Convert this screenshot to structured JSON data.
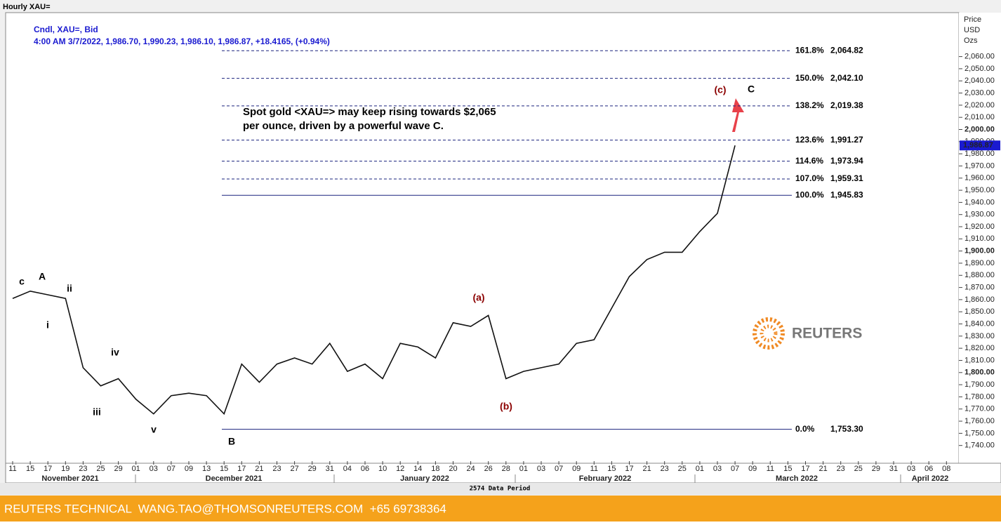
{
  "chart_data": {
    "type": "line",
    "window_title": "Hourly XAU=",
    "subtitle": "Cndl, XAU=, Bid",
    "quote_line": "4:00 AM 3/7/2022, 1,986.70, 1,990.23, 1,986.10, 1,986.87, +18.4165, (+0.94%)",
    "y_axis_label": [
      "Price",
      "USD",
      "Ozs"
    ],
    "x_tick_labels": [
      "11",
      "15",
      "17",
      "19",
      "23",
      "25",
      "29",
      "01",
      "03",
      "07",
      "09",
      "13",
      "15",
      "17",
      "21",
      "23",
      "27",
      "29",
      "31",
      "04",
      "06",
      "10",
      "12",
      "14",
      "18",
      "20",
      "24",
      "26",
      "28",
      "01",
      "03",
      "07",
      "09",
      "11",
      "15",
      "17",
      "21",
      "23",
      "25",
      "01",
      "03",
      "07",
      "09",
      "11",
      "15",
      "17",
      "21",
      "23",
      "25",
      "29",
      "31",
      "03",
      "06",
      "08"
    ],
    "month_labels": [
      "November 2021",
      "December 2021",
      "January 2022",
      "February 2022",
      "March 2022",
      "April 2022"
    ],
    "series": [
      {
        "name": "XAU=",
        "color": "#111111",
        "values": [
          1861,
          1867,
          1864,
          1861,
          1804,
          1789,
          1795,
          1778,
          1766,
          1781,
          1783,
          1781,
          1766,
          1807,
          1792,
          1807,
          1812,
          1807,
          1824,
          1801,
          1807,
          1795,
          1824,
          1821,
          1812,
          1841,
          1838,
          1847,
          1795,
          1801,
          1804,
          1807,
          1824,
          1827,
          1853,
          1879,
          1893,
          1899,
          1899,
          1916,
          1931,
          1986.87,
          null,
          null,
          null,
          null,
          null,
          null,
          null,
          null,
          null,
          null,
          null,
          null
        ]
      }
    ],
    "last_price": {
      "value": 1986.87,
      "label": "1,986.87"
    },
    "ylim": [
      1730,
      2095
    ],
    "yticks": [
      {
        "value": 1740,
        "label": "1,740.00"
      },
      {
        "value": 1750,
        "label": "1,750.00"
      },
      {
        "value": 1760,
        "label": "1,760.00"
      },
      {
        "value": 1770,
        "label": "1,770.00"
      },
      {
        "value": 1780,
        "label": "1,780.00"
      },
      {
        "value": 1790,
        "label": "1,790.00"
      },
      {
        "value": 1800,
        "label": "1,800.00"
      },
      {
        "value": 1810,
        "label": "1,810.00"
      },
      {
        "value": 1820,
        "label": "1,820.00"
      },
      {
        "value": 1830,
        "label": "1,830.00"
      },
      {
        "value": 1840,
        "label": "1,840.00"
      },
      {
        "value": 1850,
        "label": "1,850.00"
      },
      {
        "value": 1860,
        "label": "1,860.00"
      },
      {
        "value": 1870,
        "label": "1,870.00"
      },
      {
        "value": 1880,
        "label": "1,880.00"
      },
      {
        "value": 1890,
        "label": "1,890.00"
      },
      {
        "value": 1900,
        "label": "1,900.00"
      },
      {
        "value": 1910,
        "label": "1,910.00"
      },
      {
        "value": 1920,
        "label": "1,920.00"
      },
      {
        "value": 1930,
        "label": "1,930.00"
      },
      {
        "value": 1940,
        "label": "1,940.00"
      },
      {
        "value": 1950,
        "label": "1,950.00"
      },
      {
        "value": 1960,
        "label": "1,960.00"
      },
      {
        "value": 1970,
        "label": "1,970.00"
      },
      {
        "value": 1980,
        "label": "1,980.00"
      },
      {
        "value": 1990,
        "label": "1,990.00"
      },
      {
        "value": 2000,
        "label": "2,000.00"
      },
      {
        "value": 2010,
        "label": "2,010.00"
      },
      {
        "value": 2020,
        "label": "2,020.00"
      },
      {
        "value": 2030,
        "label": "2,030.00"
      },
      {
        "value": 2040,
        "label": "2,040.00"
      },
      {
        "value": 2050,
        "label": "2,050.00"
      },
      {
        "value": 2060,
        "label": "2,060.00"
      }
    ],
    "fib_levels": [
      {
        "ratio": "161.8%",
        "value": 2064.82,
        "value_label": "2,064.82",
        "dashed": true
      },
      {
        "ratio": "150.0%",
        "value": 2042.1,
        "value_label": "2,042.10",
        "dashed": true
      },
      {
        "ratio": "138.2%",
        "value": 2019.38,
        "value_label": "2,019.38",
        "dashed": true
      },
      {
        "ratio": "123.6%",
        "value": 1991.27,
        "value_label": "1,991.27",
        "dashed": true
      },
      {
        "ratio": "114.6%",
        "value": 1973.94,
        "value_label": "1,973.94",
        "dashed": true
      },
      {
        "ratio": "107.0%",
        "value": 1959.31,
        "value_label": "1,959.31",
        "dashed": true
      },
      {
        "ratio": "100.0%",
        "value": 1945.83,
        "value_label": "1,945.83",
        "dashed": false
      },
      {
        "ratio": "0.0%",
        "value": 1753.3,
        "value_label": "1,753.30",
        "dashed": false
      }
    ],
    "wave_labels": [
      "c",
      "A",
      "ii",
      "i",
      "iv",
      "iii",
      "v",
      "B",
      "(a)",
      "(b)",
      "(c)",
      "C"
    ],
    "note": [
      "Spot gold <XAU=> may keep rising towards $2,065",
      "per ounce, driven by a powerful wave C."
    ],
    "logo": "REUTERS",
    "data_period": "2574 Data Period",
    "footer": "REUTERS TECHNICAL  WANG.TAO@THOMSONREUTERS.COM  +65 69738364"
  }
}
